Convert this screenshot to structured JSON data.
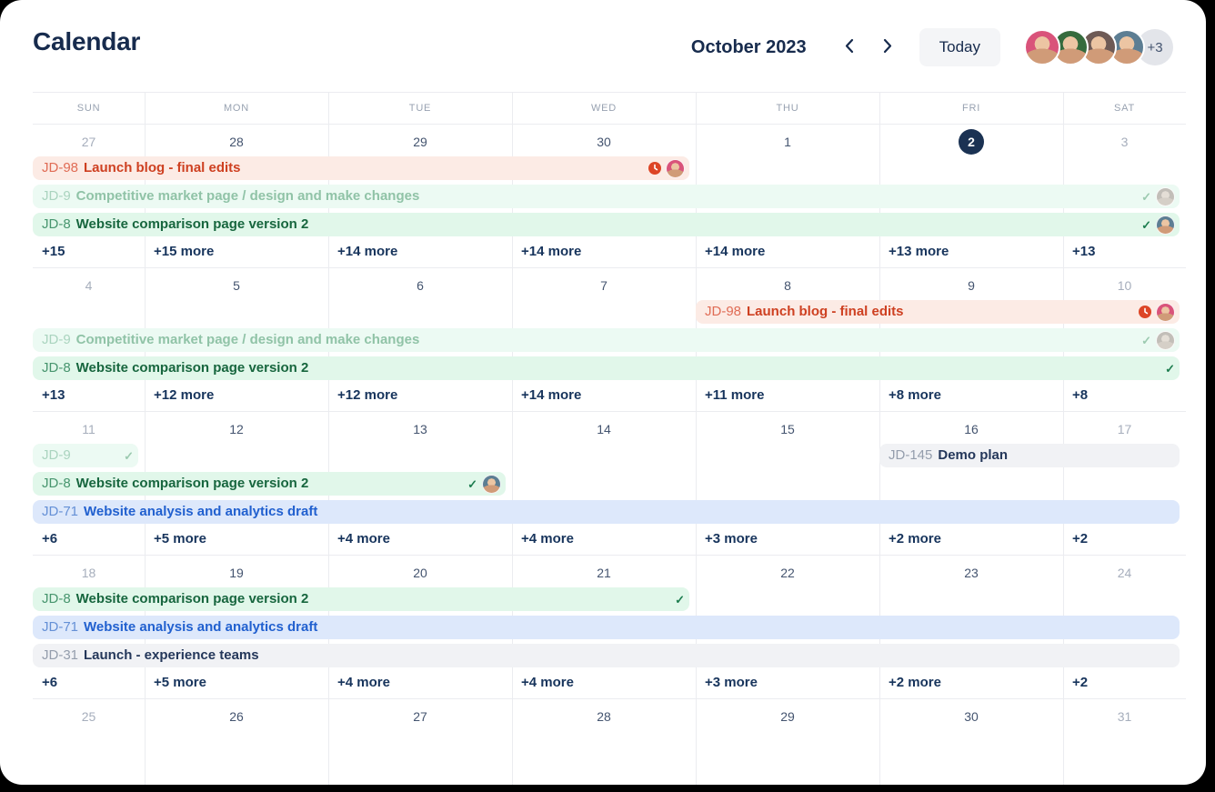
{
  "header": {
    "title": "Calendar",
    "month_label": "October 2023",
    "today_label": "Today",
    "overflow_label": "+3",
    "avatar_colors": [
      "#d9537a",
      "#356b3d",
      "#6e5a55",
      "#5d7e93"
    ]
  },
  "palette": {
    "red": {
      "bg": "#fcebe5",
      "key": "#e06c55",
      "title": "#ce4021"
    },
    "green_muted": {
      "bg": "#ecfaf3",
      "key": "#aad4bf",
      "title": "#90c3a7"
    },
    "green": {
      "bg": "#e1f7ea",
      "key": "#47956e",
      "title": "#17663e"
    },
    "blue": {
      "bg": "#dde8fb",
      "key": "#6590d6",
      "title": "#2160cf"
    },
    "gray": {
      "bg": "#f1f2f5",
      "key": "#949dac",
      "title": "#24375a"
    }
  },
  "icon_colors": {
    "check": "#1d7d4f",
    "check_muted": "#9ccab0",
    "overdue_clock": "#dd4526"
  },
  "calendar": {
    "day_headers": [
      "SUN",
      "MON",
      "TUE",
      "WED",
      "THU",
      "FRI",
      "SAT"
    ],
    "weeks": [
      {
        "dates": [
          {
            "label": "27",
            "muted": true
          },
          {
            "label": "28"
          },
          {
            "label": "29"
          },
          {
            "label": "30"
          },
          {
            "label": "1"
          },
          {
            "label": "2",
            "today": true
          },
          {
            "label": "3",
            "muted": true
          }
        ],
        "events": [
          {
            "slot": 0,
            "start": 0,
            "end": 3,
            "color": "red",
            "key": "JD-98",
            "title": "Launch blog - final edits",
            "icons": [
              {
                "type": "overdue-clock"
              },
              {
                "type": "avatar",
                "color": "#d9537a"
              }
            ]
          },
          {
            "slot": 1,
            "start": 0,
            "end": 6,
            "color": "green_muted",
            "key": "JD-9",
            "title": "Competitive market page / design and make changes",
            "icons": [
              {
                "type": "check",
                "muted": true
              },
              {
                "type": "avatar",
                "color": "#c2beb8",
                "faded": true
              }
            ]
          },
          {
            "slot": 2,
            "start": 0,
            "end": 6,
            "color": "green",
            "key": "JD-8",
            "title": "Website comparison page version 2",
            "icons": [
              {
                "type": "check"
              },
              {
                "type": "avatar",
                "color": "#5d7e93"
              }
            ]
          }
        ],
        "more": [
          "+15",
          "+15 more",
          "+14 more",
          "+14 more",
          "+14 more",
          "+13 more",
          "+13"
        ]
      },
      {
        "dates": [
          {
            "label": "4",
            "muted": true
          },
          {
            "label": "5"
          },
          {
            "label": "6"
          },
          {
            "label": "7"
          },
          {
            "label": "8"
          },
          {
            "label": "9"
          },
          {
            "label": "10",
            "muted": true
          }
        ],
        "events": [
          {
            "slot": 0,
            "start": 4,
            "end": 6,
            "color": "red",
            "key": "JD-98",
            "title": "Launch blog - final edits",
            "icons": [
              {
                "type": "overdue-clock"
              },
              {
                "type": "avatar",
                "color": "#d9537a"
              }
            ]
          },
          {
            "slot": 1,
            "start": 0,
            "end": 6,
            "color": "green_muted",
            "key": "JD-9",
            "title": "Competitive market page / design and make changes",
            "icons": [
              {
                "type": "check",
                "muted": true
              },
              {
                "type": "avatar",
                "color": "#c2beb8",
                "faded": true
              }
            ]
          },
          {
            "slot": 2,
            "start": 0,
            "end": 6,
            "color": "green",
            "key": "JD-8",
            "title": "Website comparison page version 2",
            "icons": [
              {
                "type": "check"
              }
            ]
          }
        ],
        "more": [
          "+13",
          "+12 more",
          "+12 more",
          "+14 more",
          "+11 more",
          "+8 more",
          "+8"
        ]
      },
      {
        "dates": [
          {
            "label": "11",
            "muted": true
          },
          {
            "label": "12"
          },
          {
            "label": "13"
          },
          {
            "label": "14"
          },
          {
            "label": "15"
          },
          {
            "label": "16"
          },
          {
            "label": "17",
            "muted": true
          }
        ],
        "events": [
          {
            "slot": 0,
            "start": 0,
            "end": 0,
            "color": "green_muted",
            "key": "JD-9",
            "title": "",
            "icons": [
              {
                "type": "check",
                "muted": true
              }
            ]
          },
          {
            "slot": 0,
            "start": 5,
            "end": 6,
            "color": "gray",
            "key": "JD-145",
            "title": "Demo plan",
            "icons": []
          },
          {
            "slot": 1,
            "start": 0,
            "end": 2,
            "color": "green",
            "key": "JD-8",
            "title": "Website comparison page version 2",
            "icons": [
              {
                "type": "check"
              },
              {
                "type": "avatar",
                "color": "#5d7e93"
              }
            ]
          },
          {
            "slot": 2,
            "start": 0,
            "end": 6,
            "color": "blue",
            "key": "JD-71",
            "title": "Website analysis and analytics draft",
            "icons": []
          }
        ],
        "more": [
          "+6",
          "+5 more",
          "+4 more",
          "+4 more",
          "+3 more",
          "+2 more",
          "+2"
        ]
      },
      {
        "dates": [
          {
            "label": "18",
            "muted": true
          },
          {
            "label": "19"
          },
          {
            "label": "20"
          },
          {
            "label": "21"
          },
          {
            "label": "22"
          },
          {
            "label": "23"
          },
          {
            "label": "24",
            "muted": true
          }
        ],
        "events": [
          {
            "slot": 0,
            "start": 0,
            "end": 3,
            "color": "green",
            "key": "JD-8",
            "title": "Website comparison page version 2",
            "icons": [
              {
                "type": "check"
              }
            ]
          },
          {
            "slot": 1,
            "start": 0,
            "end": 6,
            "color": "blue",
            "key": "JD-71",
            "title": "Website analysis and analytics draft",
            "icons": []
          },
          {
            "slot": 2,
            "start": 0,
            "end": 6,
            "color": "gray",
            "key": "JD-31",
            "title": "Launch - experience teams",
            "icons": []
          }
        ],
        "more": [
          "+6",
          "+5 more",
          "+4 more",
          "+4 more",
          "+3 more",
          "+2 more",
          "+2"
        ]
      },
      {
        "dates": [
          {
            "label": "25",
            "muted": true
          },
          {
            "label": "26"
          },
          {
            "label": "27"
          },
          {
            "label": "28"
          },
          {
            "label": "29"
          },
          {
            "label": "30"
          },
          {
            "label": "31",
            "muted": true
          }
        ],
        "events": [],
        "more": null
      }
    ]
  }
}
